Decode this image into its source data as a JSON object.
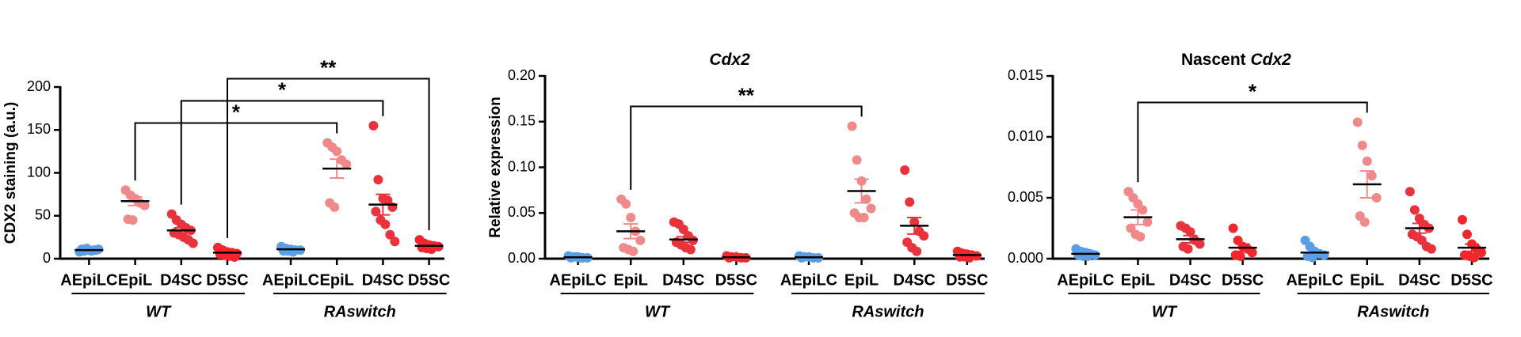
{
  "chart_data": [
    {
      "type": "dot",
      "ylabel": "CDX2 staining (a.u.)",
      "ylim": [
        0,
        200
      ],
      "yticks": [
        0,
        50,
        100,
        150,
        200
      ],
      "categories": [
        "AEpiLC",
        "EpiL",
        "D4SC",
        "D5SC",
        "AEpiLC",
        "EpiL",
        "D4SC",
        "D5SC"
      ],
      "group_labels": [
        "WT",
        "RAswitch"
      ],
      "colors": [
        "#5b9ee8",
        "#f08a8a",
        "#e8323c",
        "#f3262e",
        "#5b9ee8",
        "#f08a8a",
        "#e8323c",
        "#f3262e"
      ],
      "mean_color": "#000000",
      "points": [
        [
          8,
          9,
          10,
          10,
          11,
          11,
          12,
          9,
          10
        ],
        [
          80,
          74,
          70,
          65,
          62,
          46,
          45
        ],
        [
          52,
          45,
          40,
          36,
          33,
          30,
          28,
          25,
          22,
          18
        ],
        [
          13,
          10,
          8,
          7,
          6,
          5,
          4,
          3,
          2
        ],
        [
          14,
          12,
          11,
          10,
          10,
          9,
          9,
          8
        ],
        [
          135,
          130,
          125,
          115,
          110,
          65,
          60
        ],
        [
          155,
          92,
          70,
          68,
          60,
          55,
          45,
          40,
          28,
          20
        ],
        [
          22,
          18,
          16,
          15,
          14,
          13,
          12,
          11
        ]
      ],
      "means": [
        10,
        67,
        33,
        7,
        11,
        105,
        63,
        15
      ],
      "errors": [
        1,
        5,
        3,
        1,
        1,
        11,
        12,
        1.5
      ],
      "comparisons": [
        {
          "between": [
            1,
            5
          ],
          "label": "*"
        },
        {
          "between": [
            2,
            6
          ],
          "label": "*"
        },
        {
          "between": [
            3,
            7
          ],
          "label": "**"
        }
      ]
    },
    {
      "type": "dot",
      "title_italic": "Cdx2",
      "ylabel": "Relative expression",
      "ylim": [
        0,
        0.2
      ],
      "yticks": [
        {
          "value": 0,
          "label": "0.00"
        },
        {
          "value": 0.05,
          "label": "0.05"
        },
        {
          "value": 0.1,
          "label": "0.10"
        },
        {
          "value": 0.15,
          "label": "0.15"
        },
        {
          "value": 0.2,
          "label": "0.20"
        }
      ],
      "categories": [
        "AEpiLC",
        "EpiL",
        "D4SC",
        "D5SC",
        "AEpiLC",
        "EpiL",
        "D4SC",
        "D5SC"
      ],
      "group_labels": [
        "WT",
        "RAswitch"
      ],
      "colors": [
        "#5b9ee8",
        "#f08a8a",
        "#e8323c",
        "#f3262e",
        "#5b9ee8",
        "#f08a8a",
        "#e8323c",
        "#f3262e"
      ],
      "mean_color": "#000000",
      "points": [
        [
          0.003,
          0.002,
          0.002,
          0.001,
          0.001,
          0.001,
          0.002,
          0.001
        ],
        [
          0.065,
          0.06,
          0.045,
          0.03,
          0.02,
          0.012,
          0.01,
          0.008
        ],
        [
          0.04,
          0.038,
          0.032,
          0.025,
          0.02,
          0.018,
          0.015,
          0.012,
          0.01
        ],
        [
          0.003,
          0.002,
          0.002,
          0.001,
          0.001,
          0.001
        ],
        [
          0.003,
          0.002,
          0.002,
          0.001,
          0.001,
          0.001
        ],
        [
          0.145,
          0.108,
          0.085,
          0.065,
          0.055,
          0.05,
          0.045,
          0.045
        ],
        [
          0.097,
          0.062,
          0.04,
          0.03,
          0.025,
          0.018,
          0.012,
          0.008
        ],
        [
          0.008,
          0.006,
          0.005,
          0.004,
          0.003,
          0.002,
          0.002,
          0.001
        ]
      ],
      "means": [
        0.0015,
        0.03,
        0.021,
        0.0015,
        0.0015,
        0.074,
        0.036,
        0.004
      ],
      "errors": [
        0.0003,
        0.008,
        0.003,
        0.0003,
        0.0003,
        0.013,
        0.009,
        0.001
      ],
      "comparisons": [
        {
          "between": [
            1,
            5
          ],
          "label": "**"
        }
      ]
    },
    {
      "type": "dot",
      "title": "Nascent",
      "title_italic": "Cdx2",
      "ylim": [
        0,
        0.015
      ],
      "yticks": [
        {
          "value": 0,
          "label": "0.000"
        },
        {
          "value": 0.005,
          "label": "0.005"
        },
        {
          "value": 0.01,
          "label": "0.010"
        },
        {
          "value": 0.015,
          "label": "0.015"
        }
      ],
      "categories": [
        "AEpiLC",
        "EpiL",
        "D4SC",
        "D5SC",
        "AEpiLC",
        "EpiL",
        "D4SC",
        "D5SC"
      ],
      "group_labels": [
        "WT",
        "RAswitch"
      ],
      "colors": [
        "#5b9ee8",
        "#f08a8a",
        "#e8323c",
        "#f3262e",
        "#5b9ee8",
        "#f08a8a",
        "#e8323c",
        "#f3262e"
      ],
      "mean_color": "#000000",
      "points": [
        [
          0.0008,
          0.0006,
          0.0005,
          0.0004,
          0.0003,
          0.0003,
          0.0002,
          0.0002
        ],
        [
          0.0055,
          0.005,
          0.0045,
          0.004,
          0.003,
          0.0025,
          0.002,
          0.0018
        ],
        [
          0.0027,
          0.0025,
          0.0022,
          0.0015,
          0.0012,
          0.001,
          0.0008
        ],
        [
          0.0025,
          0.0015,
          0.001,
          0.0008,
          0.0005,
          0.0003,
          0.0002
        ],
        [
          0.0015,
          0.001,
          0.0006,
          0.0004,
          0.0003,
          0.0002,
          0.0001
        ],
        [
          0.0112,
          0.0093,
          0.008,
          0.0068,
          0.005,
          0.0035,
          0.003
        ],
        [
          0.0055,
          0.004,
          0.0033,
          0.0028,
          0.0025,
          0.002,
          0.0018,
          0.0015,
          0.001,
          0.0008
        ],
        [
          0.0032,
          0.002,
          0.0012,
          0.0008,
          0.0005,
          0.0003,
          0.0002,
          0.0001
        ]
      ],
      "means": [
        0.0004,
        0.0034,
        0.0016,
        0.0009,
        0.0005,
        0.0061,
        0.0025,
        0.0009
      ],
      "errors": [
        0.0001,
        0.0006,
        0.0003,
        0.0003,
        0.0002,
        0.0011,
        0.0004,
        0.0003
      ],
      "comparisons": [
        {
          "between": [
            1,
            5
          ],
          "label": "*"
        }
      ]
    }
  ]
}
